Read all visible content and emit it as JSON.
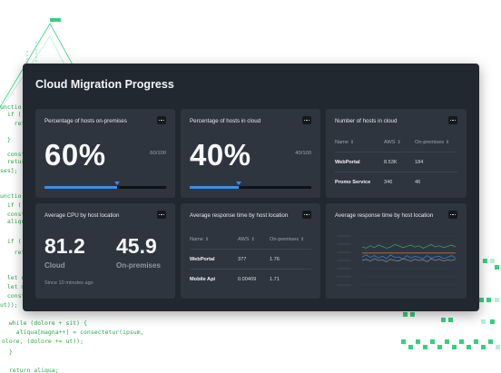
{
  "dashboard": {
    "title": "Cloud Migration Progress"
  },
  "cards": {
    "onprem_pct": {
      "title": "Percentage of hosts on-premises",
      "value": "60%",
      "fraction": "60/100",
      "progress": 0.6
    },
    "cloud_pct": {
      "title": "Percentage of hosts in cloud",
      "value": "40%",
      "fraction": "40/100",
      "progress": 0.4
    },
    "cloud_hosts": {
      "title": "Number of hosts in cloud",
      "headers": [
        "Name",
        "AWS",
        "On-premises"
      ],
      "rows": [
        [
          "WebPortal",
          "8.53K",
          "184"
        ],
        [
          "Promo Service",
          "346",
          "46"
        ]
      ]
    },
    "cpu": {
      "title": "Average CPU by host location",
      "cloud_value": "81.2",
      "cloud_label": "Cloud",
      "onprem_value": "45.9",
      "onprem_label": "On-premises",
      "timestamp": "Since 10 minutes ago"
    },
    "response_table": {
      "title": "Average response time by host location",
      "headers": [
        "Name",
        "AWS",
        "On-premises"
      ],
      "rows": [
        [
          "WebPortal",
          "377",
          "1.76"
        ],
        [
          "Mobile Api",
          "0.00409",
          "1.71"
        ]
      ]
    },
    "response_chart": {
      "title": "Average response time by host location"
    }
  },
  "icons": {
    "menu": "more-dots-icon",
    "sort": "sort-updown-icon"
  },
  "colors": {
    "accent": "#3a8ee6",
    "background": "#222830",
    "card": "#2e353e",
    "decoration_green": "#35d07f"
  },
  "background_code": [
    "unctio",
    "  if (",
    "    ret",
    "  }",
    "  const",
    "  retur",
    "ses];",
    "unctio",
    "  if (",
    "  const",
    "  aliqua",
    "  if (",
    "    retu",
    "  let d",
    "  let m",
    "  const",
    "ut));",
    "  while (dolore + sit) {",
    "    aliqua[magna++] = consectetur(ipsum,",
    "olore, (dolore += ut));",
    "  }",
    "  return aliqua;"
  ],
  "chart_data": {
    "type": "line",
    "title": "Average response time by host location",
    "x": [
      0,
      1,
      2,
      3,
      4,
      5,
      6,
      7,
      8,
      9,
      10,
      11,
      12,
      13,
      14,
      15,
      16,
      17,
      18,
      19,
      20,
      21,
      22,
      23
    ],
    "series": [
      {
        "color": "#2fa35a",
        "values": [
          6.2,
          6.0,
          6.4,
          6.1,
          6.5,
          6.3,
          6.0,
          6.2,
          6.6,
          6.4,
          6.1,
          6.3,
          6.5,
          6.2,
          6.4,
          6.0,
          6.3,
          6.6,
          6.2,
          6.4,
          6.1,
          6.3,
          6.5,
          6.2
        ]
      },
      {
        "color": "#d9742b",
        "values": [
          5.2,
          5.2,
          5.2,
          5.2,
          5.2,
          5.2,
          5.2,
          5.2,
          5.2,
          5.2,
          5.2,
          5.2,
          5.2,
          5.2,
          5.2,
          5.2,
          5.2,
          5.2,
          5.2,
          5.2,
          5.2,
          5.2,
          5.2,
          5.2
        ]
      },
      {
        "color": "#3a7bd5",
        "values": [
          4.6,
          4.9,
          4.5,
          4.8,
          4.4,
          4.7,
          4.3,
          4.9,
          4.5,
          4.6,
          4.2,
          4.8,
          4.4,
          4.7,
          4.5,
          4.3,
          4.8,
          4.4,
          4.6,
          4.7,
          4.3,
          4.5,
          4.8,
          4.4
        ]
      },
      {
        "color": "#7a8594",
        "values": [
          4.0,
          4.2,
          3.9,
          4.3,
          4.0,
          4.1,
          3.8,
          4.2,
          4.0,
          3.9,
          4.3,
          4.1,
          3.9,
          4.2,
          4.0,
          4.1,
          3.8,
          4.3,
          4.0,
          4.2,
          3.9,
          4.1,
          4.0,
          4.2
        ]
      }
    ],
    "ylim": [
      0,
      8
    ],
    "grid": true,
    "legend": "none"
  }
}
